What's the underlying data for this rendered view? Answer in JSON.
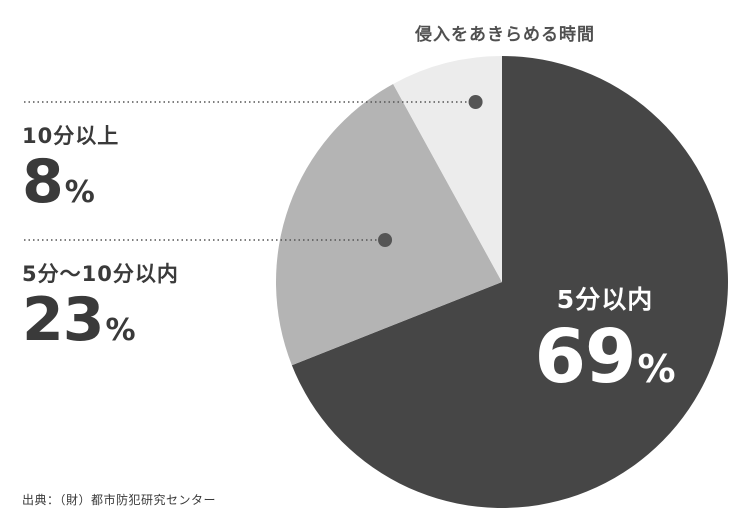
{
  "chart_data": {
    "type": "pie",
    "title": "侵入をあきらめる時間",
    "slices": [
      {
        "label": "5分以内",
        "value": 69,
        "value_text": "69",
        "unit": "%",
        "color": "#464646"
      },
      {
        "label": "5分〜10分以内",
        "value": 23,
        "value_text": "23",
        "unit": "%",
        "color": "#b4b4b4"
      },
      {
        "label": "10分以上",
        "value": 8,
        "value_text": "8",
        "unit": "%",
        "color": "#ececec"
      }
    ],
    "start": "top",
    "direction": "clockwise",
    "legend": "none"
  },
  "source": "出典：（財）都市防犯研究センター"
}
